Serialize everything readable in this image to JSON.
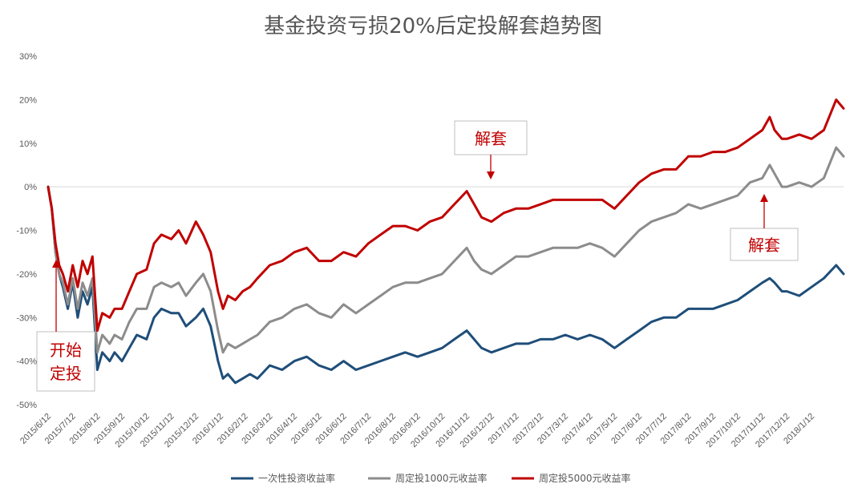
{
  "chart_data": {
    "type": "line",
    "title": "基金投资亏损20%后定投解套趋势图",
    "xlabel": "",
    "ylabel": "",
    "ylim": [
      -50,
      30
    ],
    "y_ticks": [
      "30%",
      "20%",
      "10%",
      "0%",
      "-10%",
      "-20%",
      "-30%",
      "-40%",
      "-50%"
    ],
    "y_tick_values": [
      30,
      20,
      10,
      0,
      -10,
      -20,
      -30,
      -40,
      -50
    ],
    "x_ticks": [
      "2015/6/12",
      "2015/7/12",
      "2015/8/12",
      "2015/9/12",
      "2015/10/12",
      "2015/11/12",
      "2015/12/12",
      "2016/1/12",
      "2016/2/12",
      "2016/3/12",
      "2016/4/12",
      "2016/5/12",
      "2016/6/12",
      "2016/7/12",
      "2016/8/12",
      "2016/9/12",
      "2016/10/12",
      "2016/11/12",
      "2016/12/12",
      "2017/1/12",
      "2017/2/12",
      "2017/3/12",
      "2017/4/12",
      "2017/5/12",
      "2017/6/12",
      "2017/7/12",
      "2017/8/12",
      "2017/9/12",
      "2017/10/12",
      "2017/11/12",
      "2017/12/12",
      "2018/1/12"
    ],
    "x_ticks_month_index": [
      0,
      1,
      2,
      3,
      4,
      5,
      6,
      7,
      8,
      9,
      10,
      11,
      12,
      13,
      14,
      15,
      16,
      17,
      18,
      19,
      20,
      21,
      22,
      23,
      24,
      25,
      26,
      27,
      28,
      29,
      30,
      31
    ],
    "x_range_month_index": [
      0,
      32.3
    ],
    "grid": false,
    "legend_position": "bottom",
    "series": [
      {
        "name": "一次性投资收益率",
        "color": "#1f4e79",
        "x": [
          0,
          0.15,
          0.3,
          0.45,
          0.6,
          0.8,
          1,
          1.2,
          1.4,
          1.6,
          1.8,
          2,
          2.2,
          2.5,
          2.7,
          3,
          3.3,
          3.6,
          4,
          4.3,
          4.6,
          5,
          5.3,
          5.6,
          6,
          6.3,
          6.6,
          6.9,
          7.1,
          7.3,
          7.6,
          7.9,
          8.2,
          8.5,
          9,
          9.5,
          10,
          10.5,
          11,
          11.5,
          12,
          12.5,
          13,
          13.5,
          14,
          14.5,
          15,
          15.5,
          16,
          16.5,
          17,
          17.3,
          17.6,
          18,
          18.5,
          19,
          19.5,
          20,
          20.5,
          21,
          21.5,
          22,
          22.5,
          23,
          23.5,
          24,
          24.5,
          25,
          25.5,
          26,
          26.5,
          27,
          27.5,
          28,
          28.5,
          29,
          29.3,
          29.5,
          29.8,
          30,
          30.5,
          31,
          31.5,
          32,
          32.3
        ],
        "values": [
          0,
          -5,
          -15,
          -20,
          -23,
          -28,
          -22,
          -30,
          -24,
          -27,
          -23,
          -42,
          -38,
          -40,
          -38,
          -40,
          -37,
          -34,
          -35,
          -30,
          -28,
          -29,
          -29,
          -32,
          -30,
          -28,
          -32,
          -40,
          -44,
          -43,
          -45,
          -44,
          -43,
          -44,
          -41,
          -42,
          -40,
          -39,
          -41,
          -42,
          -40,
          -42,
          -41,
          -40,
          -39,
          -38,
          -39,
          -38,
          -37,
          -35,
          -33,
          -35,
          -37,
          -38,
          -37,
          -36,
          -36,
          -35,
          -35,
          -34,
          -35,
          -34,
          -35,
          -37,
          -35,
          -33,
          -31,
          -30,
          -30,
          -28,
          -28,
          -28,
          -27,
          -26,
          -24,
          -22,
          -21,
          -22,
          -24,
          -24,
          -25,
          -23,
          -21,
          -18,
          -20
        ]
      },
      {
        "name": "周定投1000元收益率",
        "color": "#8c8c8c",
        "x": [
          0,
          0.15,
          0.3,
          0.45,
          0.6,
          0.8,
          1,
          1.2,
          1.4,
          1.6,
          1.8,
          2,
          2.2,
          2.5,
          2.7,
          3,
          3.3,
          3.6,
          4,
          4.3,
          4.6,
          5,
          5.3,
          5.6,
          6,
          6.3,
          6.6,
          6.9,
          7.1,
          7.3,
          7.6,
          7.9,
          8.2,
          8.5,
          9,
          9.5,
          10,
          10.5,
          11,
          11.5,
          12,
          12.5,
          13,
          13.5,
          14,
          14.5,
          15,
          15.5,
          16,
          16.5,
          17,
          17.3,
          17.6,
          18,
          18.5,
          19,
          19.5,
          20,
          20.5,
          21,
          21.5,
          22,
          22.5,
          23,
          23.5,
          24,
          24.5,
          25,
          25.5,
          26,
          26.5,
          27,
          27.5,
          28,
          28.5,
          29,
          29.3,
          29.5,
          29.8,
          30,
          30.5,
          31,
          31.5,
          32,
          32.3
        ],
        "values": [
          0,
          -5,
          -15,
          -20,
          -22,
          -27,
          -21,
          -28,
          -22,
          -25,
          -21,
          -38,
          -34,
          -36,
          -34,
          -35,
          -31,
          -28,
          -28,
          -23,
          -22,
          -23,
          -22,
          -25,
          -22,
          -20,
          -24,
          -33,
          -38,
          -36,
          -37,
          -36,
          -35,
          -34,
          -31,
          -30,
          -28,
          -27,
          -29,
          -30,
          -27,
          -29,
          -27,
          -25,
          -23,
          -22,
          -22,
          -21,
          -20,
          -17,
          -14,
          -17,
          -19,
          -20,
          -18,
          -16,
          -16,
          -15,
          -14,
          -14,
          -14,
          -13,
          -14,
          -16,
          -13,
          -10,
          -8,
          -7,
          -6,
          -4,
          -5,
          -4,
          -3,
          -2,
          1,
          2,
          5,
          3,
          0,
          0,
          1,
          0,
          2,
          9,
          7
        ]
      },
      {
        "name": "周定投5000元收益率",
        "color": "#c00000",
        "x": [
          0,
          0.15,
          0.3,
          0.45,
          0.6,
          0.8,
          1,
          1.2,
          1.4,
          1.6,
          1.8,
          2,
          2.2,
          2.5,
          2.7,
          3,
          3.3,
          3.6,
          4,
          4.3,
          4.6,
          5,
          5.3,
          5.6,
          6,
          6.3,
          6.6,
          6.9,
          7.1,
          7.3,
          7.6,
          7.9,
          8.2,
          8.5,
          9,
          9.5,
          10,
          10.5,
          11,
          11.5,
          12,
          12.5,
          13,
          13.5,
          14,
          14.5,
          15,
          15.5,
          16,
          16.5,
          17,
          17.3,
          17.6,
          18,
          18.5,
          19,
          19.5,
          20,
          20.5,
          21,
          21.5,
          22,
          22.5,
          23,
          23.5,
          24,
          24.5,
          25,
          25.5,
          26,
          26.5,
          27,
          27.5,
          28,
          28.5,
          29,
          29.3,
          29.5,
          29.8,
          30,
          30.5,
          31,
          31.5,
          32,
          32.3
        ],
        "values": [
          0,
          -5,
          -13,
          -18,
          -20,
          -24,
          -18,
          -23,
          -17,
          -20,
          -16,
          -33,
          -29,
          -30,
          -28,
          -28,
          -24,
          -20,
          -19,
          -13,
          -11,
          -12,
          -10,
          -13,
          -8,
          -11,
          -15,
          -24,
          -28,
          -25,
          -26,
          -24,
          -23,
          -21,
          -18,
          -17,
          -15,
          -14,
          -17,
          -17,
          -15,
          -16,
          -13,
          -11,
          -9,
          -9,
          -10,
          -8,
          -7,
          -4,
          -1,
          -4,
          -7,
          -8,
          -6,
          -5,
          -5,
          -4,
          -3,
          -3,
          -3,
          -3,
          -3,
          -5,
          -2,
          1,
          3,
          4,
          4,
          7,
          7,
          8,
          8,
          9,
          11,
          13,
          16,
          13,
          11,
          11,
          12,
          11,
          13,
          20,
          18
        ]
      }
    ],
    "annotations": [
      {
        "label": "开始定投",
        "lines": [
          "开始",
          "定投"
        ],
        "color": "#c00000"
      },
      {
        "label": "解套",
        "color": "#c00000"
      },
      {
        "label": "解套",
        "color": "#c00000"
      }
    ]
  }
}
